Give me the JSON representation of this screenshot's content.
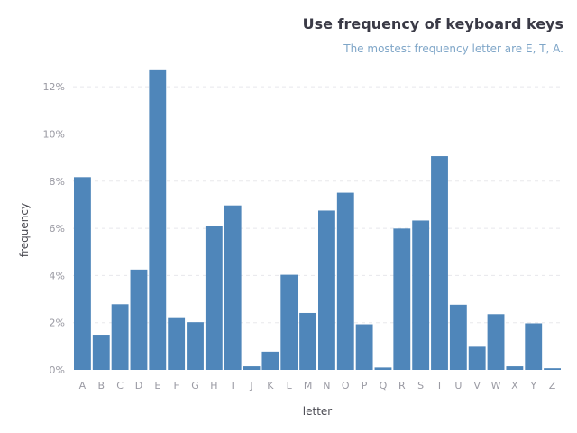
{
  "chart_data": {
    "type": "bar",
    "title": "Use frequency of keyboard keys",
    "subtitle": "The mostest frequency letter are E, T, A.",
    "xlabel": "letter",
    "ylabel": "frequency",
    "categories": [
      "A",
      "B",
      "C",
      "D",
      "E",
      "F",
      "G",
      "H",
      "I",
      "J",
      "K",
      "L",
      "M",
      "N",
      "O",
      "P",
      "Q",
      "R",
      "S",
      "T",
      "U",
      "V",
      "W",
      "X",
      "Y",
      "Z"
    ],
    "values": [
      8.17,
      1.49,
      2.78,
      4.25,
      12.7,
      2.23,
      2.02,
      6.09,
      6.97,
      0.15,
      0.77,
      4.03,
      2.41,
      6.75,
      7.51,
      1.93,
      0.1,
      5.99,
      6.33,
      9.06,
      2.76,
      0.98,
      2.36,
      0.15,
      1.97,
      0.07
    ],
    "ylim": [
      0,
      13
    ],
    "yticks": [
      0,
      2,
      4,
      6,
      8,
      10,
      12
    ],
    "ytick_labels": [
      "0%",
      "2%",
      "4%",
      "6%",
      "8%",
      "10%",
      "12%"
    ],
    "grid": true,
    "colors": {
      "bar": "#4f86ba",
      "grid": "#e8e8ec",
      "tick": "#9a9aa3"
    }
  }
}
